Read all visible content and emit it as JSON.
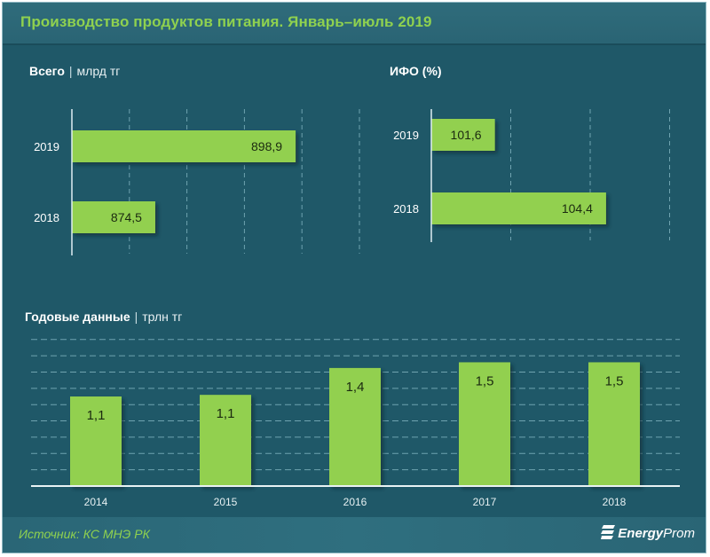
{
  "header": {
    "title": "Производство продуктов питания. Январь–июль 2019"
  },
  "colors": {
    "background": "#1f5868",
    "header": "#2f6c7b",
    "bar": "#92d050",
    "title": "#8fd14f",
    "grid": "#6fa3b0"
  },
  "sections": {
    "total": {
      "title": "Всего",
      "unit": "млрд тг"
    },
    "ifo": {
      "title": "ИФО (%)"
    },
    "annual": {
      "title": "Годовые данные",
      "unit": "трлн тг"
    }
  },
  "footer": {
    "source": "Источник: КС МНЭ РК",
    "logo_bold": "Energy",
    "logo_light": "Prom",
    "logo_icon": "energyprom-logo-icon"
  },
  "chart_data": [
    {
      "type": "bar",
      "orientation": "horizontal",
      "title": "Всего | млрд тг",
      "categories": [
        "2019",
        "2018"
      ],
      "values": [
        898.9,
        874.5
      ],
      "labels": [
        "898,9",
        "874,5"
      ],
      "xlim": [
        860,
        910
      ],
      "grid_step": 10,
      "grid": true
    },
    {
      "type": "bar",
      "orientation": "horizontal",
      "title": "ИФО (%)",
      "categories": [
        "2019",
        "2018"
      ],
      "values": [
        101.6,
        104.4
      ],
      "labels": [
        "101,6",
        "104,4"
      ],
      "xlim": [
        100,
        106
      ],
      "grid_step": 2,
      "grid": true
    },
    {
      "type": "bar",
      "orientation": "vertical",
      "title": "Годовые данные | трлн тг",
      "categories": [
        "2014",
        "2015",
        "2016",
        "2017",
        "2018"
      ],
      "values": [
        1.1,
        1.12,
        1.45,
        1.52,
        1.52
      ],
      "labels": [
        "1,1",
        "1,1",
        "1,4",
        "1,5",
        "1,5"
      ],
      "ylim": [
        0,
        2.0
      ],
      "grid_step": 0.2,
      "grid_max": 1.8,
      "grid": true
    }
  ]
}
